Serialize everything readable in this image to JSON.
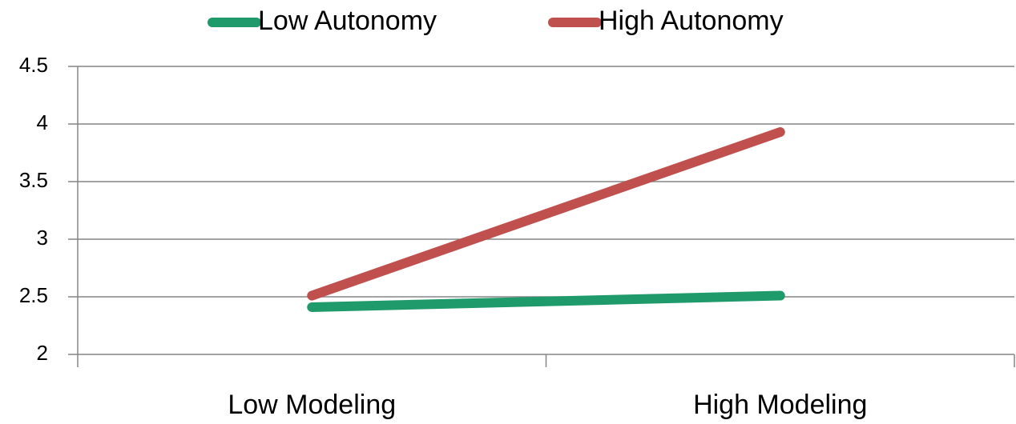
{
  "chart_data": {
    "type": "line",
    "categories": [
      "Low Modeling",
      "High Modeling"
    ],
    "series": [
      {
        "name": "Low Autonomy",
        "color": "#1f9a6b",
        "values": [
          2.41,
          2.51
        ]
      },
      {
        "name": "High Autonomy",
        "color": "#c0504d",
        "values": [
          2.51,
          3.93
        ]
      }
    ],
    "ylim": [
      2,
      4.5
    ],
    "yticks": [
      2,
      2.5,
      3,
      3.5,
      4,
      4.5
    ],
    "grid": true,
    "legend": "top"
  }
}
